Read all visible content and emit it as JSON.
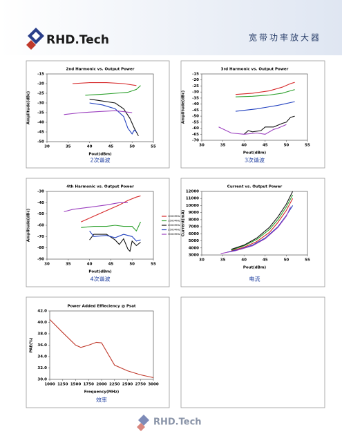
{
  "header": {
    "logo": "RHD.Tech",
    "title": "宽带功率放大器"
  },
  "footer": {
    "logo": "RHD.Tech"
  },
  "chart_data": [
    {
      "type": "line",
      "title": "2nd Harmonic vs. Output Power",
      "x_label": "Pout(dBm)",
      "y_label": "Amplitude(dBc)",
      "caption": "2次谐波",
      "xlim": [
        30,
        55
      ],
      "xticks": [
        30,
        35,
        40,
        45,
        50,
        55
      ],
      "ylim": [
        -50,
        -15
      ],
      "yticks": [
        -50,
        -45,
        -40,
        -35,
        -30,
        -25,
        -20,
        -15
      ],
      "grid": false,
      "series": [
        {
          "color": "#d62728",
          "x": [
            36,
            40,
            44,
            48,
            51
          ],
          "values": [
            -20,
            -19.5,
            -19.5,
            -20,
            -21
          ]
        },
        {
          "color": "#2ca02c",
          "x": [
            39,
            43,
            46,
            49,
            51,
            52
          ],
          "values": [
            -26,
            -25.5,
            -25,
            -24.5,
            -23,
            -21
          ]
        },
        {
          "color": "#111111",
          "x": [
            40,
            43,
            46,
            48,
            49.5,
            50.5,
            51.5
          ],
          "values": [
            -28,
            -29,
            -30,
            -33,
            -38,
            -43,
            -47
          ]
        },
        {
          "color": "#1f3fbf",
          "x": [
            40,
            43,
            46,
            48,
            49,
            50,
            50.5,
            51
          ],
          "values": [
            -30,
            -31,
            -33,
            -37,
            -43,
            -46,
            -44,
            -45
          ]
        },
        {
          "color": "#9b3fbf",
          "x": [
            34,
            38,
            42,
            46,
            50
          ],
          "values": [
            -36,
            -35,
            -34.5,
            -34,
            -35
          ]
        }
      ]
    },
    {
      "type": "line",
      "title": "3rd Harmonic  vs. Output Power",
      "x_label": "Pout(dBm)",
      "y_label": "Amplitude(dBc)",
      "caption": "3次谐波",
      "xlim": [
        30,
        55
      ],
      "xticks": [
        30,
        35,
        40,
        45,
        50,
        55
      ],
      "ylim": [
        -70,
        -15
      ],
      "yticks": [
        -70,
        -65,
        -60,
        -55,
        -50,
        -45,
        -40,
        -35,
        -30,
        -25,
        -20,
        -15
      ],
      "grid": false,
      "series": [
        {
          "color": "#d62728",
          "x": [
            38,
            42,
            46,
            49,
            51,
            52
          ],
          "values": [
            -32,
            -31,
            -29,
            -26,
            -23,
            -22
          ]
        },
        {
          "color": "#2ca02c",
          "x": [
            38,
            42,
            46,
            49,
            51,
            52
          ],
          "values": [
            -34,
            -33.5,
            -32.5,
            -31,
            -29,
            -28
          ]
        },
        {
          "color": "#111111",
          "x": [
            40,
            41,
            42,
            44,
            45,
            47,
            49,
            50,
            51,
            52
          ],
          "values": [
            -65,
            -62,
            -63,
            -62,
            -59,
            -59,
            -56,
            -55,
            -51,
            -50
          ]
        },
        {
          "color": "#1f3fbf",
          "x": [
            38,
            43,
            48,
            52
          ],
          "values": [
            -46,
            -44,
            -41,
            -38
          ]
        },
        {
          "color": "#9b3fbf",
          "x": [
            34,
            37,
            40,
            43,
            45,
            47,
            48,
            50
          ],
          "values": [
            -59,
            -64,
            -65,
            -64,
            -65,
            -61,
            -60,
            -57
          ]
        }
      ]
    },
    {
      "type": "line",
      "title": "4th Harmonic  vs. Output Power",
      "x_label": "Pout(dBm)",
      "y_label": "Amplitude(dBc)",
      "caption": "4次谐波",
      "xlim": [
        30,
        55
      ],
      "xticks": [
        30,
        35,
        40,
        45,
        50,
        55
      ],
      "ylim": [
        -90,
        -30
      ],
      "yticks": [
        -90,
        -80,
        -70,
        -60,
        -50,
        -40,
        -30
      ],
      "grid": false,
      "legend": "outside-right",
      "series": [
        {
          "name": "1000MHz",
          "color": "#d62728",
          "x": [
            38,
            41,
            44,
            47,
            49,
            51,
            52
          ],
          "values": [
            -57,
            -52,
            -47,
            -42,
            -38,
            -35,
            -34
          ]
        },
        {
          "name": "1500MHz",
          "color": "#2ca02c",
          "x": [
            38,
            41,
            44,
            46,
            48,
            50,
            51,
            52
          ],
          "values": [
            -62,
            -61,
            -61,
            -60,
            -61,
            -61,
            -65,
            -57
          ]
        },
        {
          "name": "2000MHz",
          "color": "#111111",
          "x": [
            40,
            41,
            44,
            46,
            47,
            48,
            49,
            49.5,
            50,
            51,
            52
          ],
          "values": [
            -73,
            -68,
            -68,
            -73,
            -77,
            -72,
            -81,
            -83,
            -74,
            -78,
            -75
          ]
        },
        {
          "name": "2500MHz",
          "color": "#1f3fbf",
          "x": [
            40,
            41,
            44,
            46,
            48,
            50,
            51,
            52
          ],
          "values": [
            -65,
            -70,
            -69,
            -71,
            -68,
            -70,
            -74,
            -73
          ]
        },
        {
          "name": "3000MHz",
          "color": "#9b3fbf",
          "x": [
            34,
            36,
            40,
            44,
            47,
            49
          ],
          "values": [
            -48,
            -46,
            -44,
            -42,
            -40,
            -40
          ]
        }
      ]
    },
    {
      "type": "line",
      "title": "Current vs. Output Power",
      "x_label": "Pout(dBm)",
      "y_label": "Current(mA)",
      "caption": "电流",
      "xlim": [
        30,
        55
      ],
      "xticks": [
        30,
        35,
        40,
        45,
        50,
        55
      ],
      "ylim": [
        3000,
        12000
      ],
      "yticks": [
        3000,
        4000,
        5000,
        6000,
        7000,
        8000,
        9000,
        10000,
        11000,
        12000
      ],
      "grid": false,
      "series": [
        {
          "color": "#d62728",
          "x": [
            37,
            40,
            43,
            46,
            48,
            50,
            51.5
          ],
          "values": [
            3600,
            4100,
            4900,
            6200,
            7600,
            9300,
            11000
          ]
        },
        {
          "color": "#2ca02c",
          "x": [
            37,
            40,
            43,
            46,
            48,
            50,
            51.5
          ],
          "values": [
            3700,
            4300,
            5200,
            6600,
            8000,
            9800,
            11500
          ]
        },
        {
          "color": "#111111",
          "x": [
            37,
            40,
            43,
            46,
            48,
            50,
            51.5
          ],
          "values": [
            3800,
            4400,
            5400,
            6900,
            8400,
            10200,
            12000
          ]
        },
        {
          "color": "#1f3fbf",
          "x": [
            36,
            39,
            42,
            45,
            48,
            50,
            51.5
          ],
          "values": [
            3400,
            3800,
            4400,
            5400,
            7000,
            8600,
            10000
          ]
        },
        {
          "color": "#9b3fbf",
          "x": [
            34.5,
            38,
            42,
            45,
            48,
            50,
            51
          ],
          "values": [
            3200,
            3600,
            4300,
            5300,
            6900,
            8500,
            9800
          ]
        }
      ]
    },
    {
      "type": "line",
      "title": "Power Added Effieciency @ Psat",
      "x_label": "Frequency(MHz)",
      "y_label": "PAE(%)",
      "caption": "效率",
      "xlim": [
        1000,
        3000
      ],
      "xticks": [
        1000,
        1250,
        1500,
        1750,
        2000,
        2250,
        2500,
        2750,
        3000
      ],
      "ylim": [
        30,
        42
      ],
      "yticks": [
        {
          "value": 30,
          "label": "30.0"
        },
        {
          "value": 32,
          "label": "32.0"
        },
        {
          "value": 34,
          "label": "34.0"
        },
        {
          "value": 36,
          "label": "36.0"
        },
        {
          "value": 38,
          "label": "38.0"
        },
        {
          "value": 40,
          "label": "40.0"
        },
        {
          "value": 42,
          "label": "42.0"
        }
      ],
      "grid": false,
      "series": [
        {
          "color": "#c0392b",
          "x": [
            1000,
            1250,
            1500,
            1600,
            1750,
            1900,
            2000,
            2250,
            2500,
            2750,
            3000
          ],
          "values": [
            40.5,
            38.2,
            36,
            35.6,
            36,
            36.5,
            36.4,
            32.5,
            31.5,
            30.8,
            30.3
          ]
        }
      ]
    }
  ]
}
